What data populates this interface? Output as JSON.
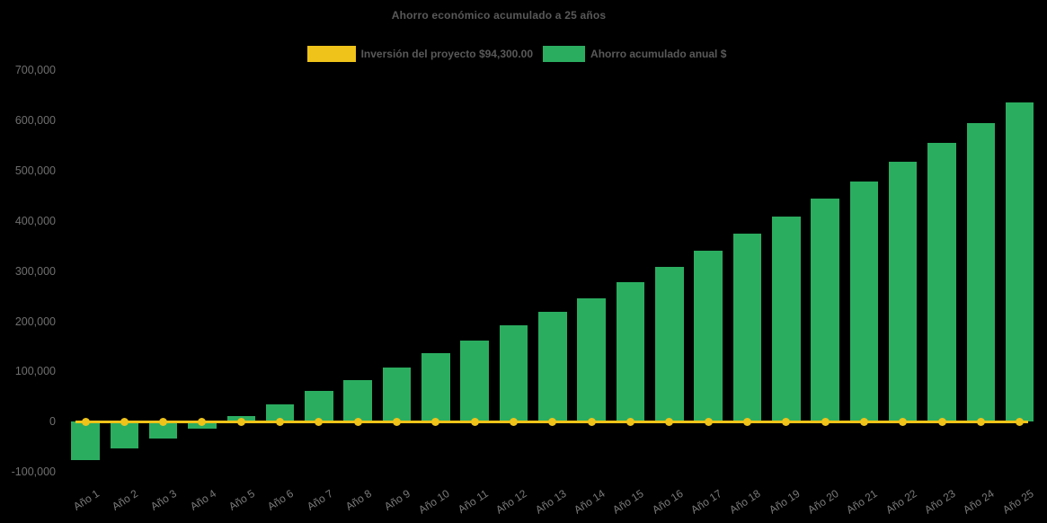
{
  "title": "Ahorro económico acumulado a 25 años",
  "legend": {
    "items": [
      {
        "id": "investment",
        "label": "Inversión del proyecto $94,300.00",
        "color": "#EFC319"
      },
      {
        "id": "savings",
        "label": "Ahorro acumulado anual $",
        "color": "#2BAD60"
      }
    ]
  },
  "chart_data": {
    "type": "bar",
    "title": "Ahorro económico acumulado a 25 años",
    "categories": [
      "Año 1",
      "Año 2",
      "Año 3",
      "Año 4",
      "Año 5",
      "Año 6",
      "Año 7",
      "Año 8",
      "Año 9",
      "Año 10",
      "Año 11",
      "Año 12",
      "Año 13",
      "Año 14",
      "Año 15",
      "Año 16",
      "Año 17",
      "Año 18",
      "Año 19",
      "Año 20",
      "Año 21",
      "Año 22",
      "Año 23",
      "Año 24",
      "Año 25"
    ],
    "series": [
      {
        "name": "Inversión del proyecto $94,300.00",
        "type": "line",
        "color": "#EFC319",
        "marker": "circle",
        "constant_value": 94300,
        "plotted_at_y": 0
      },
      {
        "name": "Ahorro acumulado anual $",
        "type": "bar",
        "color": "#2BAD60",
        "values": [
          -76500,
          -53500,
          -34000,
          -13000,
          11500,
          34500,
          61000,
          83500,
          108500,
          136000,
          161000,
          191500,
          219500,
          246500,
          277500,
          308000,
          340000,
          374500,
          408500,
          444000,
          479000,
          518000,
          555000,
          595500,
          636500
        ]
      }
    ],
    "y_axis": {
      "min": -100000,
      "max": 700000,
      "tick_step": 100000,
      "tick_labels": [
        "-100,000",
        "0",
        "100,000",
        "200,000",
        "300,000",
        "400,000",
        "500,000",
        "600,000",
        "700,000"
      ]
    },
    "x_axis": {
      "label_rotation_deg": -33
    },
    "grid": false,
    "legend_position": "top",
    "background": "#000000",
    "text_colors": {
      "title": "#595959",
      "axis_ticks": "#6F6F6F",
      "category_labels": "#7A7A7A"
    }
  }
}
